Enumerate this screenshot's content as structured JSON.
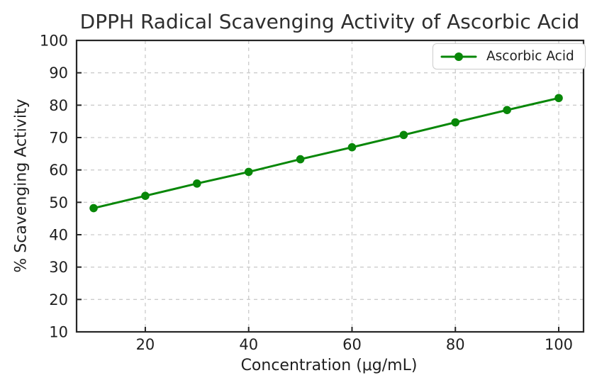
{
  "figure": {
    "background": "#ffffff"
  },
  "chart_data": {
    "type": "line",
    "title": "DPPH Radical Scavenging Activity of Ascorbic Acid",
    "xlabel": "Concentration (μg/mL)",
    "ylabel": "% Scavenging Activity",
    "x": [
      10,
      20,
      30,
      40,
      50,
      60,
      70,
      80,
      90,
      100
    ],
    "series": [
      {
        "name": "Ascorbic Acid",
        "values": [
          48.2,
          52.0,
          55.8,
          59.4,
          63.3,
          67.0,
          70.8,
          74.7,
          78.5,
          82.2
        ],
        "color": "#088708",
        "marker": "circle",
        "line_style": "solid"
      }
    ],
    "x_ticks": [
      20,
      40,
      60,
      80,
      100
    ],
    "y_ticks": [
      10,
      20,
      30,
      40,
      50,
      60,
      70,
      80,
      90,
      100
    ],
    "xlim": [
      6.7,
      104.8
    ],
    "ylim": [
      10,
      100
    ],
    "grid": "dashed both axes",
    "grid_color": "#cccccc",
    "axis_color": "#262626",
    "legend": {
      "position": "upper right",
      "entries": [
        "Ascorbic Acid"
      ]
    }
  }
}
